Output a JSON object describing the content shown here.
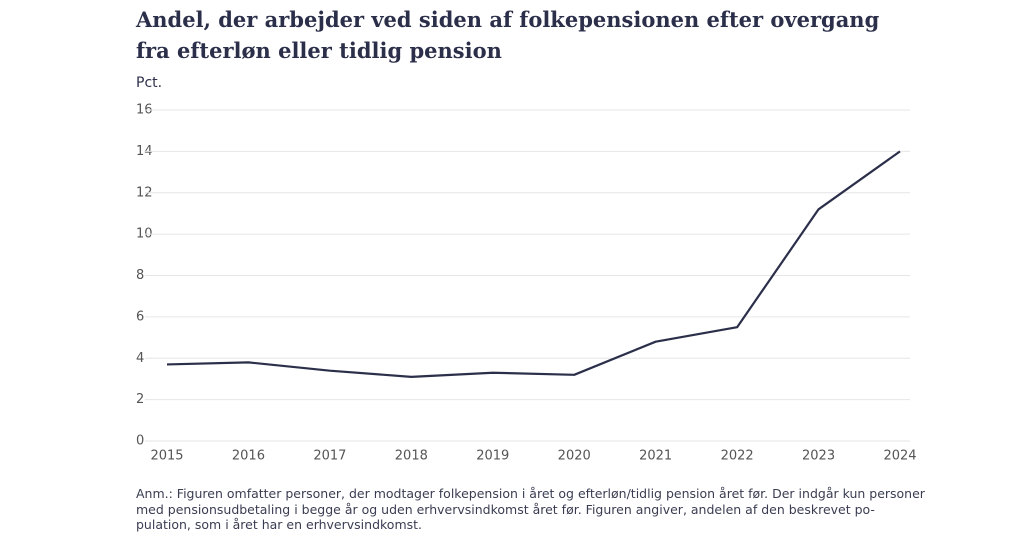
{
  "chart_data": {
    "type": "line",
    "title": "Andel, der arbejder ved siden af folkepensionen efter overgang fra efterløn eller tidlig pension",
    "y_label": "Pct.",
    "categories": [
      "2015",
      "2016",
      "2017",
      "2018",
      "2019",
      "2020",
      "2021",
      "2022",
      "2023",
      "2024"
    ],
    "values": [
      3.7,
      3.8,
      3.4,
      3.1,
      3.3,
      3.2,
      4.8,
      5.5,
      11.2,
      14.0
    ],
    "color": "#2b2f4a",
    "ylim": [
      0,
      16
    ],
    "yticks": [
      0,
      2,
      4,
      6,
      8,
      10,
      12,
      14,
      16
    ],
    "grid": true,
    "note": "Anm.: Figuren omfatter personer, der modtager folkepension i året og efterløn/tidlig pension året før. Der indgår kun personer med pensionsudbetaling i begge år og uden erhvervsindkomst året før. Figuren angiver, andelen af den beskrevet po-pulation, som i året har en erhvervsindkomst."
  }
}
